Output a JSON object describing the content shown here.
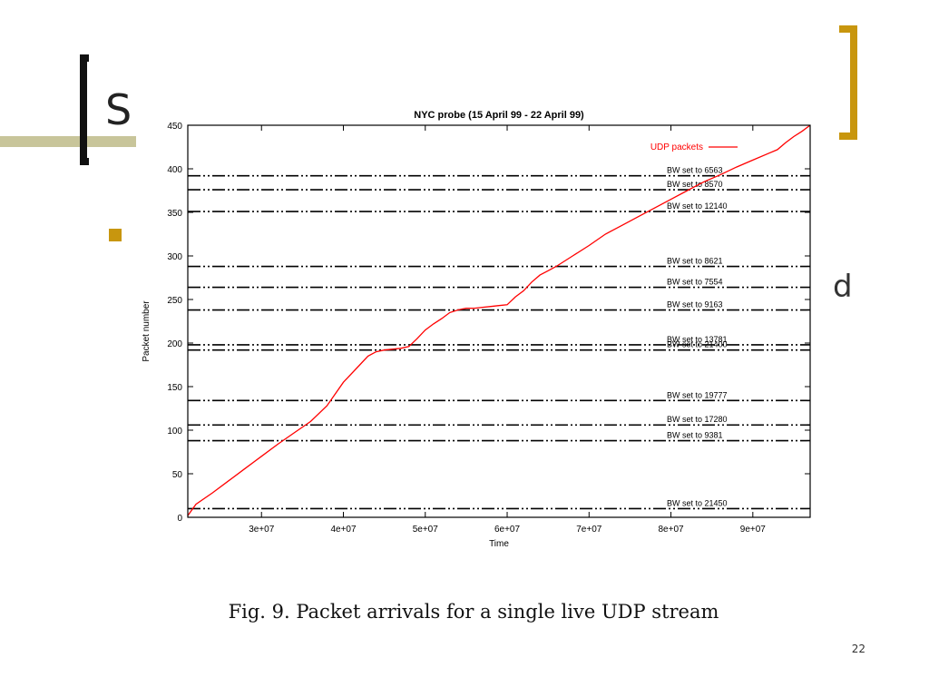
{
  "slide": {
    "title_fragment": "S",
    "bullet_tail": "d",
    "caption": "Fig. 9.  Packet arrivals for a single live UDP stream",
    "page_number": "22",
    "colors": {
      "accent_gold": "#c8960e",
      "accent_olive": "#c8c59a",
      "series_red": "#ff0000"
    }
  },
  "chart_data": {
    "type": "line",
    "title": "NYC probe (15 April 99 - 22 April 99)",
    "xlabel": "Time",
    "ylabel": "Packet number",
    "xlim": [
      21000000,
      97000000
    ],
    "ylim": [
      0,
      450
    ],
    "x_ticks": [
      30000000,
      40000000,
      50000000,
      60000000,
      70000000,
      80000000,
      90000000
    ],
    "x_tick_labels": [
      "3e+07",
      "4e+07",
      "5e+07",
      "6e+07",
      "7e+07",
      "8e+07",
      "9e+07"
    ],
    "y_ticks": [
      0,
      50,
      100,
      150,
      200,
      250,
      300,
      350,
      400,
      450
    ],
    "y_tick_labels": [
      "0",
      "50",
      "100",
      "150",
      "200",
      "250",
      "300",
      "350",
      "400",
      "450"
    ],
    "legend": {
      "position": "top-right",
      "entries": [
        "UDP packets"
      ]
    },
    "series": [
      {
        "name": "UDP packets",
        "color": "#ff0000",
        "x": [
          21000000,
          22000000,
          24000000,
          26000000,
          28000000,
          30000000,
          32000000,
          34000000,
          36000000,
          38000000,
          40000000,
          42000000,
          43000000,
          44000000,
          45000000,
          47000000,
          48000000,
          49000000,
          50000000,
          51000000,
          52000000,
          53000000,
          54000000,
          55000000,
          56000000,
          57000000,
          58000000,
          59000000,
          60000000,
          61000000,
          62000000,
          63000000,
          64000000,
          65000000,
          66000000,
          68000000,
          70000000,
          72000000,
          74000000,
          76000000,
          78000000,
          80000000,
          82000000,
          84000000,
          86000000,
          88000000,
          90000000,
          92000000,
          93000000,
          94000000,
          95000000,
          96000000,
          97000000
        ],
        "y": [
          2,
          15,
          28,
          42,
          56,
          70,
          84,
          97,
          110,
          128,
          155,
          175,
          185,
          190,
          192,
          194,
          196,
          205,
          215,
          222,
          228,
          235,
          238,
          240,
          240,
          241,
          242,
          243,
          244,
          253,
          260,
          270,
          278,
          283,
          288,
          300,
          312,
          325,
          335,
          345,
          355,
          365,
          375,
          385,
          393,
          402,
          410,
          418,
          422,
          430,
          437,
          443,
          450
        ]
      }
    ],
    "bw_lines": [
      {
        "label": "BW set to 6563",
        "y": 392
      },
      {
        "label": "BW set to 8570",
        "y": 376
      },
      {
        "label": "BW set to 12140",
        "y": 351
      },
      {
        "label": "BW set to 8621",
        "y": 288
      },
      {
        "label": "BW set to 7554",
        "y": 264
      },
      {
        "label": "BW set to 9163",
        "y": 238
      },
      {
        "label": "BW set to 13781",
        "y": 198
      },
      {
        "label": "BW set to 21400",
        "y": 192
      },
      {
        "label": "BW set to 19777",
        "y": 134
      },
      {
        "label": "BW set to 17280",
        "y": 106
      },
      {
        "label": "BW set to 9381",
        "y": 88
      },
      {
        "label": "BW set to 21450",
        "y": 10
      }
    ]
  }
}
